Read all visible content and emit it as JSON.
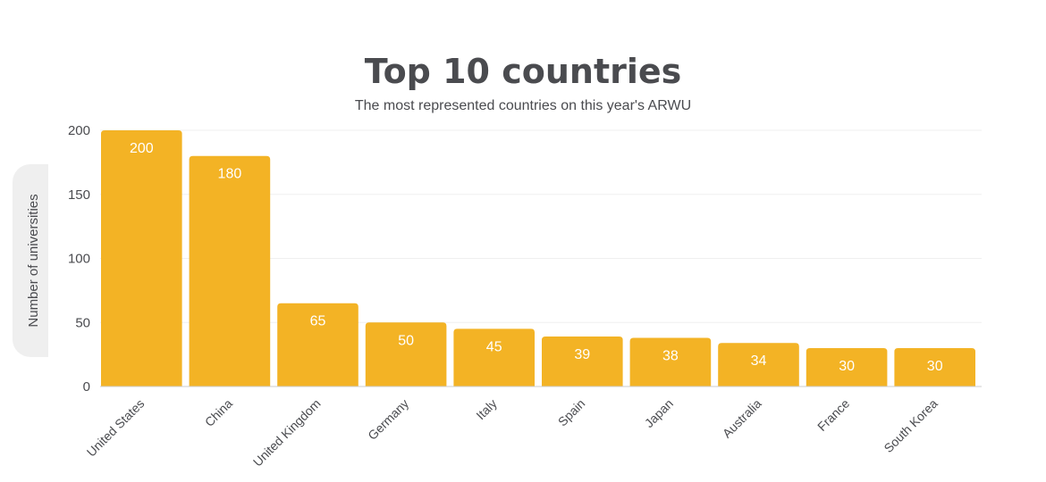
{
  "chart_data": {
    "type": "bar",
    "title": "Top 10 countries",
    "subtitle": "The most represented countries on this year's ARWU",
    "xlabel": "",
    "ylabel": "Number of universities",
    "categories": [
      "United States",
      "China",
      "United Kingdom",
      "Germany",
      "Italy",
      "Spain",
      "Japan",
      "Australia",
      "France",
      "South Korea"
    ],
    "values": [
      200,
      180,
      65,
      50,
      45,
      39,
      38,
      34,
      30,
      30
    ],
    "ylim": [
      0,
      200
    ],
    "yticks": [
      "0",
      "50",
      "100",
      "150",
      "200"
    ],
    "grid": true,
    "legend": "none",
    "bar_color": "#f3b325"
  }
}
